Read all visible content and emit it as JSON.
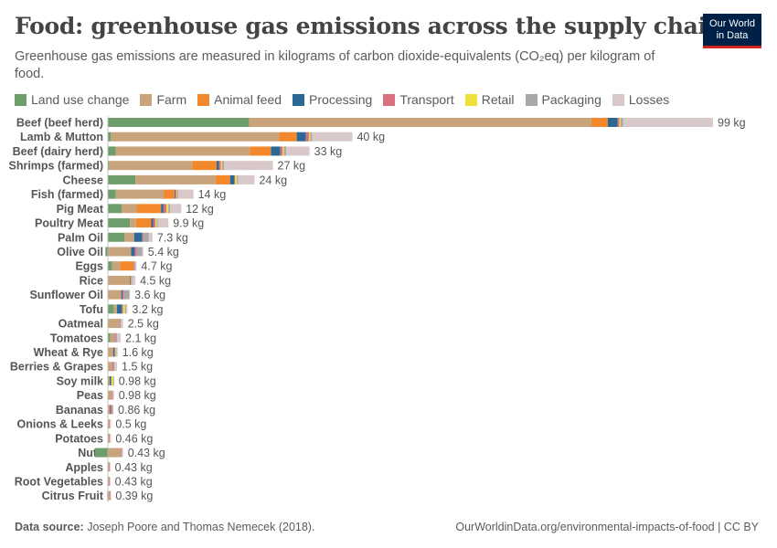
{
  "header": {
    "title": "Food: greenhouse gas emissions across the supply chain",
    "subtitle": "Greenhouse gas emissions are measured in kilograms of carbon dioxide-equivalents (CO₂eq) per kilogram of food.",
    "logo_line1": "Our World",
    "logo_line2": "in Data"
  },
  "footer": {
    "source_label": "Data source:",
    "source_text": "Joseph Poore and Thomas Nemecek (2018).",
    "url": "OurWorldinData.org/environmental-impacts-of-food | CC BY"
  },
  "chart_data": {
    "type": "bar",
    "orientation": "horizontal",
    "stacked": true,
    "unit": "kg",
    "legend_position": "top",
    "grid": false,
    "xlim": [
      0,
      99
    ],
    "series": [
      {
        "name": "Land use change",
        "color": "#6d9e6b"
      },
      {
        "name": "Farm",
        "color": "#c9a37b"
      },
      {
        "name": "Animal feed",
        "color": "#f2882b"
      },
      {
        "name": "Processing",
        "color": "#2c6896"
      },
      {
        "name": "Transport",
        "color": "#d9707e"
      },
      {
        "name": "Retail",
        "color": "#efe03c"
      },
      {
        "name": "Packaging",
        "color": "#a8a8a8"
      },
      {
        "name": "Losses",
        "color": "#d8c8ca"
      }
    ],
    "categories": [
      {
        "name": "Beef (beef herd)",
        "total_label": "99 kg",
        "values": [
          23.1,
          56.0,
          2.7,
          1.6,
          0.3,
          0.2,
          0.4,
          14.7
        ]
      },
      {
        "name": "Lamb & Mutton",
        "total_label": "40 kg",
        "values": [
          0.5,
          27.5,
          2.9,
          1.5,
          0.5,
          0.2,
          0.3,
          6.6
        ]
      },
      {
        "name": "Beef (dairy herd)",
        "total_label": "33 kg",
        "values": [
          1.3,
          21.9,
          3.5,
          1.5,
          0.4,
          0.2,
          0.4,
          3.8
        ]
      },
      {
        "name": "Shrimps (farmed)",
        "total_label": "27 kg",
        "values": [
          0.2,
          13.6,
          4.0,
          0.4,
          0.3,
          0.2,
          0.3,
          8.0
        ]
      },
      {
        "name": "Cheese",
        "total_label": "24 kg",
        "values": [
          4.5,
          13.1,
          2.4,
          0.7,
          0.1,
          0.3,
          0.2,
          2.7
        ]
      },
      {
        "name": "Fish (farmed)",
        "total_label": "14 kg",
        "values": [
          1.3,
          7.9,
          1.7,
          0.1,
          0.2,
          0.1,
          0.2,
          2.5
        ]
      },
      {
        "name": "Pig Meat",
        "total_label": "12 kg",
        "values": [
          2.3,
          2.4,
          4.0,
          0.4,
          0.5,
          0.3,
          0.3,
          1.8
        ]
      },
      {
        "name": "Poultry Meat",
        "total_label": "9.9 kg",
        "values": [
          3.6,
          1.0,
          2.5,
          0.3,
          0.4,
          0.2,
          0.2,
          1.7
        ]
      },
      {
        "name": "Palm Oil",
        "total_label": "7.3 kg",
        "values": [
          2.7,
          1.6,
          0.0,
          1.3,
          0.2,
          0.0,
          0.9,
          0.6
        ]
      },
      {
        "name": "Olive Oil",
        "total_label": "5.4 kg",
        "values": [
          -0.4,
          3.8,
          0.0,
          0.6,
          0.3,
          0.0,
          0.9,
          0.2
        ]
      },
      {
        "name": "Eggs",
        "total_label": "4.7 kg",
        "values": [
          0.7,
          1.3,
          2.2,
          0.0,
          0.1,
          0.0,
          0.2,
          0.2
        ]
      },
      {
        "name": "Rice",
        "total_label": "4.5 kg",
        "values": [
          0.0,
          3.6,
          0.0,
          0.1,
          0.1,
          0.1,
          0.1,
          0.5
        ]
      },
      {
        "name": "Sunflower Oil",
        "total_label": "3.6 kg",
        "values": [
          0.1,
          2.1,
          0.0,
          0.2,
          0.2,
          0.0,
          0.9,
          0.1
        ]
      },
      {
        "name": "Tofu",
        "total_label": "3.2 kg",
        "values": [
          1.0,
          0.5,
          0.0,
          0.8,
          0.2,
          0.3,
          0.2,
          0.2
        ]
      },
      {
        "name": "Oatmeal",
        "total_label": "2.5 kg",
        "values": [
          0.0,
          1.9,
          0.0,
          0.0,
          0.1,
          0.0,
          0.1,
          0.4
        ]
      },
      {
        "name": "Tomatoes",
        "total_label": "2.1 kg",
        "values": [
          0.4,
          0.7,
          0.0,
          0.0,
          0.2,
          0.0,
          0.2,
          0.6
        ]
      },
      {
        "name": "Wheat & Rye",
        "total_label": "1.6 kg",
        "values": [
          0.1,
          0.8,
          0.0,
          0.2,
          0.1,
          0.1,
          0.1,
          0.2
        ]
      },
      {
        "name": "Berries & Grapes",
        "total_label": "1.5 kg",
        "values": [
          0.0,
          0.7,
          0.0,
          0.0,
          0.2,
          0.0,
          0.2,
          0.4
        ]
      },
      {
        "name": "Soy milk",
        "total_label": "0.98 kg",
        "values": [
          0.2,
          0.1,
          0.0,
          0.2,
          0.1,
          0.3,
          0.1,
          0.0
        ]
      },
      {
        "name": "Peas",
        "total_label": "0.98 kg",
        "values": [
          0.0,
          0.7,
          0.0,
          0.0,
          0.1,
          0.0,
          0.0,
          0.2
        ]
      },
      {
        "name": "Bananas",
        "total_label": "0.86 kg",
        "values": [
          0.0,
          0.3,
          0.0,
          0.1,
          0.3,
          0.0,
          0.1,
          0.1
        ]
      },
      {
        "name": "Onions & Leeks",
        "total_label": "0.5 kg",
        "values": [
          0.0,
          0.2,
          0.0,
          0.0,
          0.1,
          0.0,
          0.0,
          0.2
        ]
      },
      {
        "name": "Potatoes",
        "total_label": "0.46 kg",
        "values": [
          0.0,
          0.2,
          0.0,
          0.0,
          0.1,
          0.0,
          0.0,
          0.2
        ]
      },
      {
        "name": "Nuts",
        "total_label": "0.43 kg",
        "values": [
          -2.1,
          2.1,
          0.0,
          0.0,
          0.1,
          0.0,
          0.1,
          0.2
        ]
      },
      {
        "name": "Apples",
        "total_label": "0.43 kg",
        "values": [
          -0.03,
          0.2,
          0.0,
          0.0,
          0.1,
          0.0,
          0.0,
          0.1
        ]
      },
      {
        "name": "Root Vegetables",
        "total_label": "0.43 kg",
        "values": [
          0.0,
          0.2,
          0.0,
          0.0,
          0.1,
          0.0,
          0.0,
          0.1
        ]
      },
      {
        "name": "Citrus Fruit",
        "total_label": "0.39 kg",
        "values": [
          -0.1,
          0.3,
          0.0,
          0.0,
          0.1,
          0.0,
          0.0,
          0.1
        ]
      }
    ]
  }
}
